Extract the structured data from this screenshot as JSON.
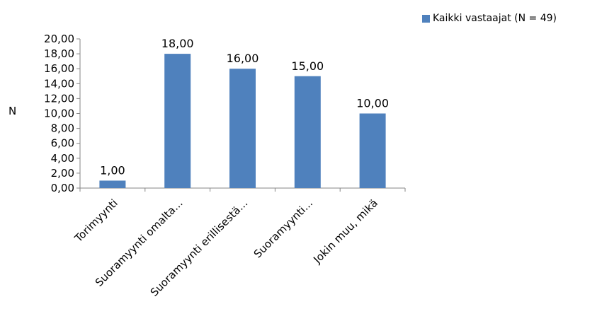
{
  "chart_data": {
    "type": "bar",
    "categories": [
      "Torimyynti",
      "Suoramyynti omalta...",
      "Suoramyynti erillisestä...",
      "Suoramyynti...",
      "Jokin muu, mikä"
    ],
    "series": [
      {
        "name": "Kaikki vastaajat (N = 49)",
        "values": [
          1,
          18,
          16,
          15,
          10
        ]
      }
    ],
    "value_labels": [
      "1,00",
      "18,00",
      "16,00",
      "15,00",
      "10,00"
    ],
    "y_ticks": [
      "0,00",
      "2,00",
      "4,00",
      "6,00",
      "8,00",
      "10,00",
      "12,00",
      "14,00",
      "16,00",
      "18,00",
      "20,00"
    ],
    "ylabel": "N",
    "xlabel": "",
    "ylim": [
      0,
      20
    ],
    "grid": false,
    "legend_position": "top-right",
    "bar_color": "#4F81BD"
  }
}
